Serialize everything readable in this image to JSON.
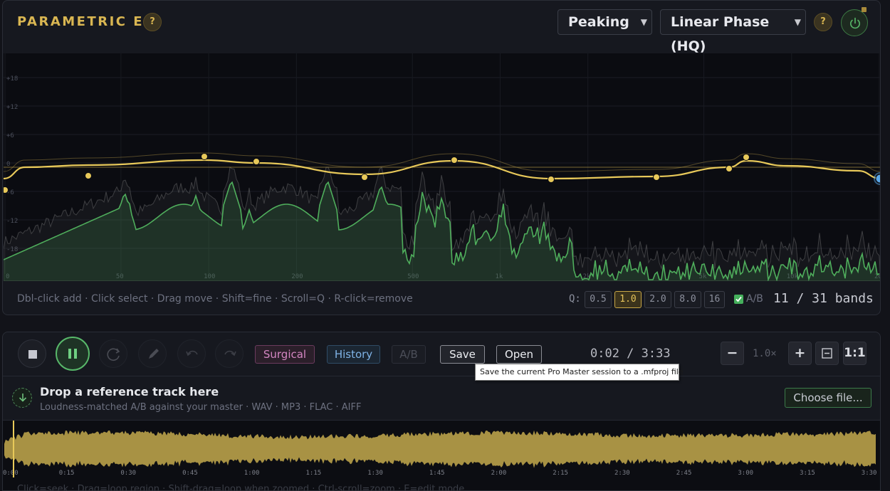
{
  "eq": {
    "title": "PARAMETRIC EQ",
    "help_icon": "?",
    "filter_type": "Peaking",
    "phase_mode": "Linear Phase (HQ)",
    "power_icon": "power-icon",
    "db_ticks": [
      "+18",
      "+12",
      "+6",
      "0",
      "-6",
      "-12",
      "-18"
    ],
    "freq_ticks": [
      "0",
      "50",
      "100",
      "200",
      "500",
      "1k",
      "2k",
      "5k",
      "10k",
      "20k"
    ],
    "hint": "Dbl-click add · Click select · Drag move · Shift=fine · Scroll=Q · R-click=remove",
    "q_label": "Q:",
    "q_presets": [
      {
        "label": "0.5",
        "active": false
      },
      {
        "label": "1.0",
        "active": true
      },
      {
        "label": "2.0",
        "active": false
      },
      {
        "label": "8.0",
        "active": false
      },
      {
        "label": "16",
        "active": false
      }
    ],
    "ab_label": "A/B",
    "ab_checked": true,
    "bands_label": "11 / 31 bands",
    "colors": {
      "accent": "#d9b652",
      "curve": "#e8c95a",
      "spectrum": "#4fae5c",
      "selected_node": "#5aa8e8"
    }
  },
  "transport": {
    "stop_icon": "stop-icon",
    "pause_icon": "pause-icon",
    "loop_icon": "loop-icon",
    "pencil_icon": "pencil-icon",
    "undo_icon": "undo-icon",
    "redo_icon": "redo-icon",
    "surgical_label": "Surgical",
    "history_label": "History",
    "ab_label": "A/B",
    "save_label": "Save",
    "open_label": "Open",
    "time": "0:02 / 3:33",
    "zoom_out_label": "−",
    "zoom_value": "1.0×",
    "zoom_in_label": "+",
    "fit_icon": "fit-icon",
    "one_to_one_label": "1:1"
  },
  "reference": {
    "icon": "download-arrow-icon",
    "title": "Drop a reference track here",
    "subtitle": "Loudness-matched A/B against your master · WAV · MP3 · FLAC · AIFF",
    "choose_label": "Choose file..."
  },
  "waveform": {
    "time_ticks": [
      "0:00",
      "0:15",
      "0:30",
      "0:45",
      "1:00",
      "1:15",
      "1:30",
      "1:45",
      "2:00",
      "2:15",
      "2:30",
      "2:45",
      "3:00",
      "3:15",
      "3:30"
    ],
    "playhead_time": "0:02",
    "hint": "Click=seek · Drag=loop region · Shift-drag=loop when zoomed · Ctrl-scroll=zoom · E=edit mode",
    "colors": {
      "wave": "#a89244",
      "playhead": "#e8c95a"
    }
  },
  "tooltip": {
    "text": "Save the current Pro Master session to a .mfproj file"
  }
}
